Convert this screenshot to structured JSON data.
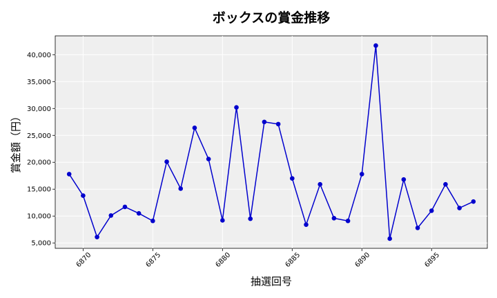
{
  "chart_data": {
    "type": "line",
    "title": "ボックスの賞金推移",
    "xlabel": "抽選回号",
    "ylabel": "賞金額（円）",
    "grid": true,
    "legend": "none",
    "xlim": [
      6868.0,
      6899.0
    ],
    "ylim": [
      4000,
      43500
    ],
    "xticks": [
      6870,
      6875,
      6880,
      6885,
      6890,
      6895
    ],
    "yticks": [
      5000,
      10000,
      15000,
      20000,
      25000,
      30000,
      35000,
      40000
    ],
    "colors": {
      "line": "#0000cd",
      "plot_bg": "#efefef",
      "grid": "#ffffff"
    },
    "series": [
      {
        "x": [
          6869,
          6870,
          6871,
          6872,
          6873,
          6874,
          6875,
          6876,
          6877,
          6878,
          6879,
          6880,
          6881,
          6882,
          6883,
          6884,
          6885,
          6886,
          6887,
          6888,
          6889,
          6890,
          6891,
          6892,
          6893,
          6894,
          6895,
          6896,
          6897,
          6898
        ],
        "values": [
          17800,
          13800,
          6100,
          10100,
          11700,
          10500,
          9100,
          20100,
          15100,
          26400,
          20600,
          9200,
          30200,
          9500,
          27500,
          27100,
          17000,
          8400,
          15900,
          9600,
          9100,
          17800,
          41700,
          5800,
          16800,
          7800,
          11000,
          15900,
          11500,
          12700
        ]
      }
    ]
  }
}
